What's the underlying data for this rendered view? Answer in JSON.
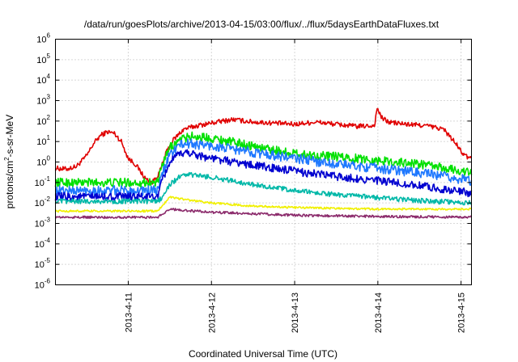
{
  "chart_data": {
    "type": "line",
    "title": "/data/run/goesPlots/archive/2013-04-15/03:00/flux/../flux/5daysEarthDataFluxes.txt",
    "xlabel": "Coordinated Universal Time (UTC)",
    "ylabel": "protons/cm²-s-sr-MeV",
    "ylabel_parts": [
      "protons/cm",
      "2",
      "-s-sr-MeV"
    ],
    "y_scale": "log",
    "ylim": [
      1e-06,
      1000000.0
    ],
    "y_ticks": [
      {
        "value": -6,
        "base": "10",
        "exp": "-6"
      },
      {
        "value": -5,
        "base": "10",
        "exp": "-5"
      },
      {
        "value": -4,
        "base": "10",
        "exp": "-4"
      },
      {
        "value": -3,
        "base": "10",
        "exp": "-3"
      },
      {
        "value": -2,
        "base": "10",
        "exp": "-2"
      },
      {
        "value": -1,
        "base": "10",
        "exp": "-1"
      },
      {
        "value": 0,
        "base": "10",
        "exp": "0"
      },
      {
        "value": 1,
        "base": "10",
        "exp": "1"
      },
      {
        "value": 2,
        "base": "10",
        "exp": "2"
      },
      {
        "value": 3,
        "base": "10",
        "exp": "3"
      },
      {
        "value": 4,
        "base": "10",
        "exp": "4"
      },
      {
        "value": 5,
        "base": "10",
        "exp": "5"
      },
      {
        "value": 6,
        "base": "10",
        "exp": "6"
      }
    ],
    "xlim": [
      "2013-04-10T03:00",
      "2013-04-15T03:00"
    ],
    "x_ticks": [
      "2013-4-11",
      "2013-4-12",
      "2013-4-13",
      "2013-4-14",
      "2013-4-15"
    ],
    "x_tick_dates": [
      "2013-04-11T00:00",
      "2013-04-12T00:00",
      "2013-04-13T00:00",
      "2013-04-14T00:00",
      "2013-04-15T00:00"
    ],
    "grid": true,
    "series": [
      {
        "color": "#e00000",
        "noise": 0.12,
        "points": [
          [
            "2013-04-10T03:00",
            0.5
          ],
          [
            "2013-04-10T06:00",
            0.45
          ],
          [
            "2013-04-10T09:00",
            0.6
          ],
          [
            "2013-04-10T12:00",
            2
          ],
          [
            "2013-04-10T14:00",
            8
          ],
          [
            "2013-04-10T16:00",
            20
          ],
          [
            "2013-04-10T18:00",
            30
          ],
          [
            "2013-04-10T20:00",
            25
          ],
          [
            "2013-04-10T22:00",
            10
          ],
          [
            "2013-04-11T00:00",
            1.5
          ],
          [
            "2013-04-11T02:00",
            0.8
          ],
          [
            "2013-04-11T05:00",
            0.15
          ],
          [
            "2013-04-11T07:00",
            0.1
          ],
          [
            "2013-04-11T09:00",
            0.3
          ],
          [
            "2013-04-11T11:00",
            3
          ],
          [
            "2013-04-11T13:00",
            12
          ],
          [
            "2013-04-11T16:00",
            40
          ],
          [
            "2013-04-11T20:00",
            60
          ],
          [
            "2013-04-12T00:00",
            80
          ],
          [
            "2013-04-12T06:00",
            120
          ],
          [
            "2013-04-12T12:00",
            90
          ],
          [
            "2013-04-12T18:00",
            80
          ],
          [
            "2013-04-13T00:00",
            70
          ],
          [
            "2013-04-13T06:00",
            90
          ],
          [
            "2013-04-13T12:00",
            70
          ],
          [
            "2013-04-13T18:00",
            55
          ],
          [
            "2013-04-13T23:00",
            60
          ],
          [
            "2013-04-13T23:50",
            450
          ],
          [
            "2013-04-14T01:00",
            150
          ],
          [
            "2013-04-14T03:00",
            90
          ],
          [
            "2013-04-14T08:00",
            70
          ],
          [
            "2013-04-14T14:00",
            60
          ],
          [
            "2013-04-14T19:00",
            40
          ],
          [
            "2013-04-14T22:00",
            10
          ],
          [
            "2013-04-15T01:00",
            2
          ],
          [
            "2013-04-15T03:00",
            1.5
          ]
        ]
      },
      {
        "color": "#00e000",
        "noise": 0.22,
        "points": [
          [
            "2013-04-10T03:00",
            0.1
          ],
          [
            "2013-04-11T06:00",
            0.1
          ],
          [
            "2013-04-11T08:30",
            0.1
          ],
          [
            "2013-04-11T10:00",
            0.8
          ],
          [
            "2013-04-11T12:00",
            5
          ],
          [
            "2013-04-11T15:00",
            12
          ],
          [
            "2013-04-11T18:00",
            18
          ],
          [
            "2013-04-12T00:00",
            15
          ],
          [
            "2013-04-12T12:00",
            6
          ],
          [
            "2013-04-13T00:00",
            2.5
          ],
          [
            "2013-04-13T12:00",
            1.8
          ],
          [
            "2013-04-14T00:00",
            1.2
          ],
          [
            "2013-04-14T12:00",
            0.8
          ],
          [
            "2013-04-15T03:00",
            0.3
          ]
        ]
      },
      {
        "color": "#1e78ff",
        "noise": 0.24,
        "points": [
          [
            "2013-04-10T03:00",
            0.04
          ],
          [
            "2013-04-11T08:30",
            0.04
          ],
          [
            "2013-04-11T10:00",
            0.3
          ],
          [
            "2013-04-11T12:00",
            2.5
          ],
          [
            "2013-04-11T15:00",
            7
          ],
          [
            "2013-04-11T18:00",
            8
          ],
          [
            "2013-04-12T00:00",
            6
          ],
          [
            "2013-04-12T12:00",
            3
          ],
          [
            "2013-04-13T00:00",
            1.5
          ],
          [
            "2013-04-13T12:00",
            0.8
          ],
          [
            "2013-04-14T00:00",
            0.5
          ],
          [
            "2013-04-14T12:00",
            0.3
          ],
          [
            "2013-04-15T03:00",
            0.12
          ]
        ]
      },
      {
        "color": "#0000d0",
        "noise": 0.2,
        "points": [
          [
            "2013-04-10T03:00",
            0.02
          ],
          [
            "2013-04-11T08:30",
            0.02
          ],
          [
            "2013-04-11T10:00",
            0.15
          ],
          [
            "2013-04-11T12:00",
            1
          ],
          [
            "2013-04-11T15:00",
            2.5
          ],
          [
            "2013-04-11T17:00",
            3
          ],
          [
            "2013-04-12T00:00",
            1.5
          ],
          [
            "2013-04-12T12:00",
            0.7
          ],
          [
            "2013-04-13T00:00",
            0.35
          ],
          [
            "2013-04-13T12:00",
            0.2
          ],
          [
            "2013-04-14T00:00",
            0.12
          ],
          [
            "2013-04-14T12:00",
            0.07
          ],
          [
            "2013-04-15T03:00",
            0.03
          ]
        ]
      },
      {
        "color": "#00b8a8",
        "noise": 0.12,
        "points": [
          [
            "2013-04-10T03:00",
            0.012
          ],
          [
            "2013-04-11T08:30",
            0.012
          ],
          [
            "2013-04-11T10:00",
            0.02
          ],
          [
            "2013-04-11T12:00",
            0.08
          ],
          [
            "2013-04-11T15:00",
            0.2
          ],
          [
            "2013-04-11T17:00",
            0.25
          ],
          [
            "2013-04-12T00:00",
            0.18
          ],
          [
            "2013-04-12T12:00",
            0.08
          ],
          [
            "2013-04-13T00:00",
            0.04
          ],
          [
            "2013-04-13T12:00",
            0.025
          ],
          [
            "2013-04-14T00:00",
            0.018
          ],
          [
            "2013-04-14T12:00",
            0.013
          ],
          [
            "2013-04-15T03:00",
            0.01
          ]
        ]
      },
      {
        "color": "#f0f000",
        "noise": 0.05,
        "points": [
          [
            "2013-04-10T03:00",
            0.004
          ],
          [
            "2013-04-11T08:30",
            0.004
          ],
          [
            "2013-04-11T10:00",
            0.008
          ],
          [
            "2013-04-11T12:00",
            0.02
          ],
          [
            "2013-04-11T16:00",
            0.015
          ],
          [
            "2013-04-12T00:00",
            0.01
          ],
          [
            "2013-04-12T12:00",
            0.007
          ],
          [
            "2013-04-13T00:00",
            0.006
          ],
          [
            "2013-04-14T00:00",
            0.005
          ],
          [
            "2013-04-15T03:00",
            0.005
          ]
        ]
      },
      {
        "color": "#8b2a6b",
        "noise": 0.06,
        "points": [
          [
            "2013-04-10T03:00",
            0.002
          ],
          [
            "2013-04-11T08:30",
            0.002
          ],
          [
            "2013-04-11T10:00",
            0.003
          ],
          [
            "2013-04-11T12:00",
            0.005
          ],
          [
            "2013-04-11T15:00",
            0.0045
          ],
          [
            "2013-04-12T00:00",
            0.0035
          ],
          [
            "2013-04-12T12:00",
            0.003
          ],
          [
            "2013-04-13T00:00",
            0.0025
          ],
          [
            "2013-04-14T00:00",
            0.0022
          ],
          [
            "2013-04-15T03:00",
            0.002
          ]
        ]
      }
    ]
  }
}
